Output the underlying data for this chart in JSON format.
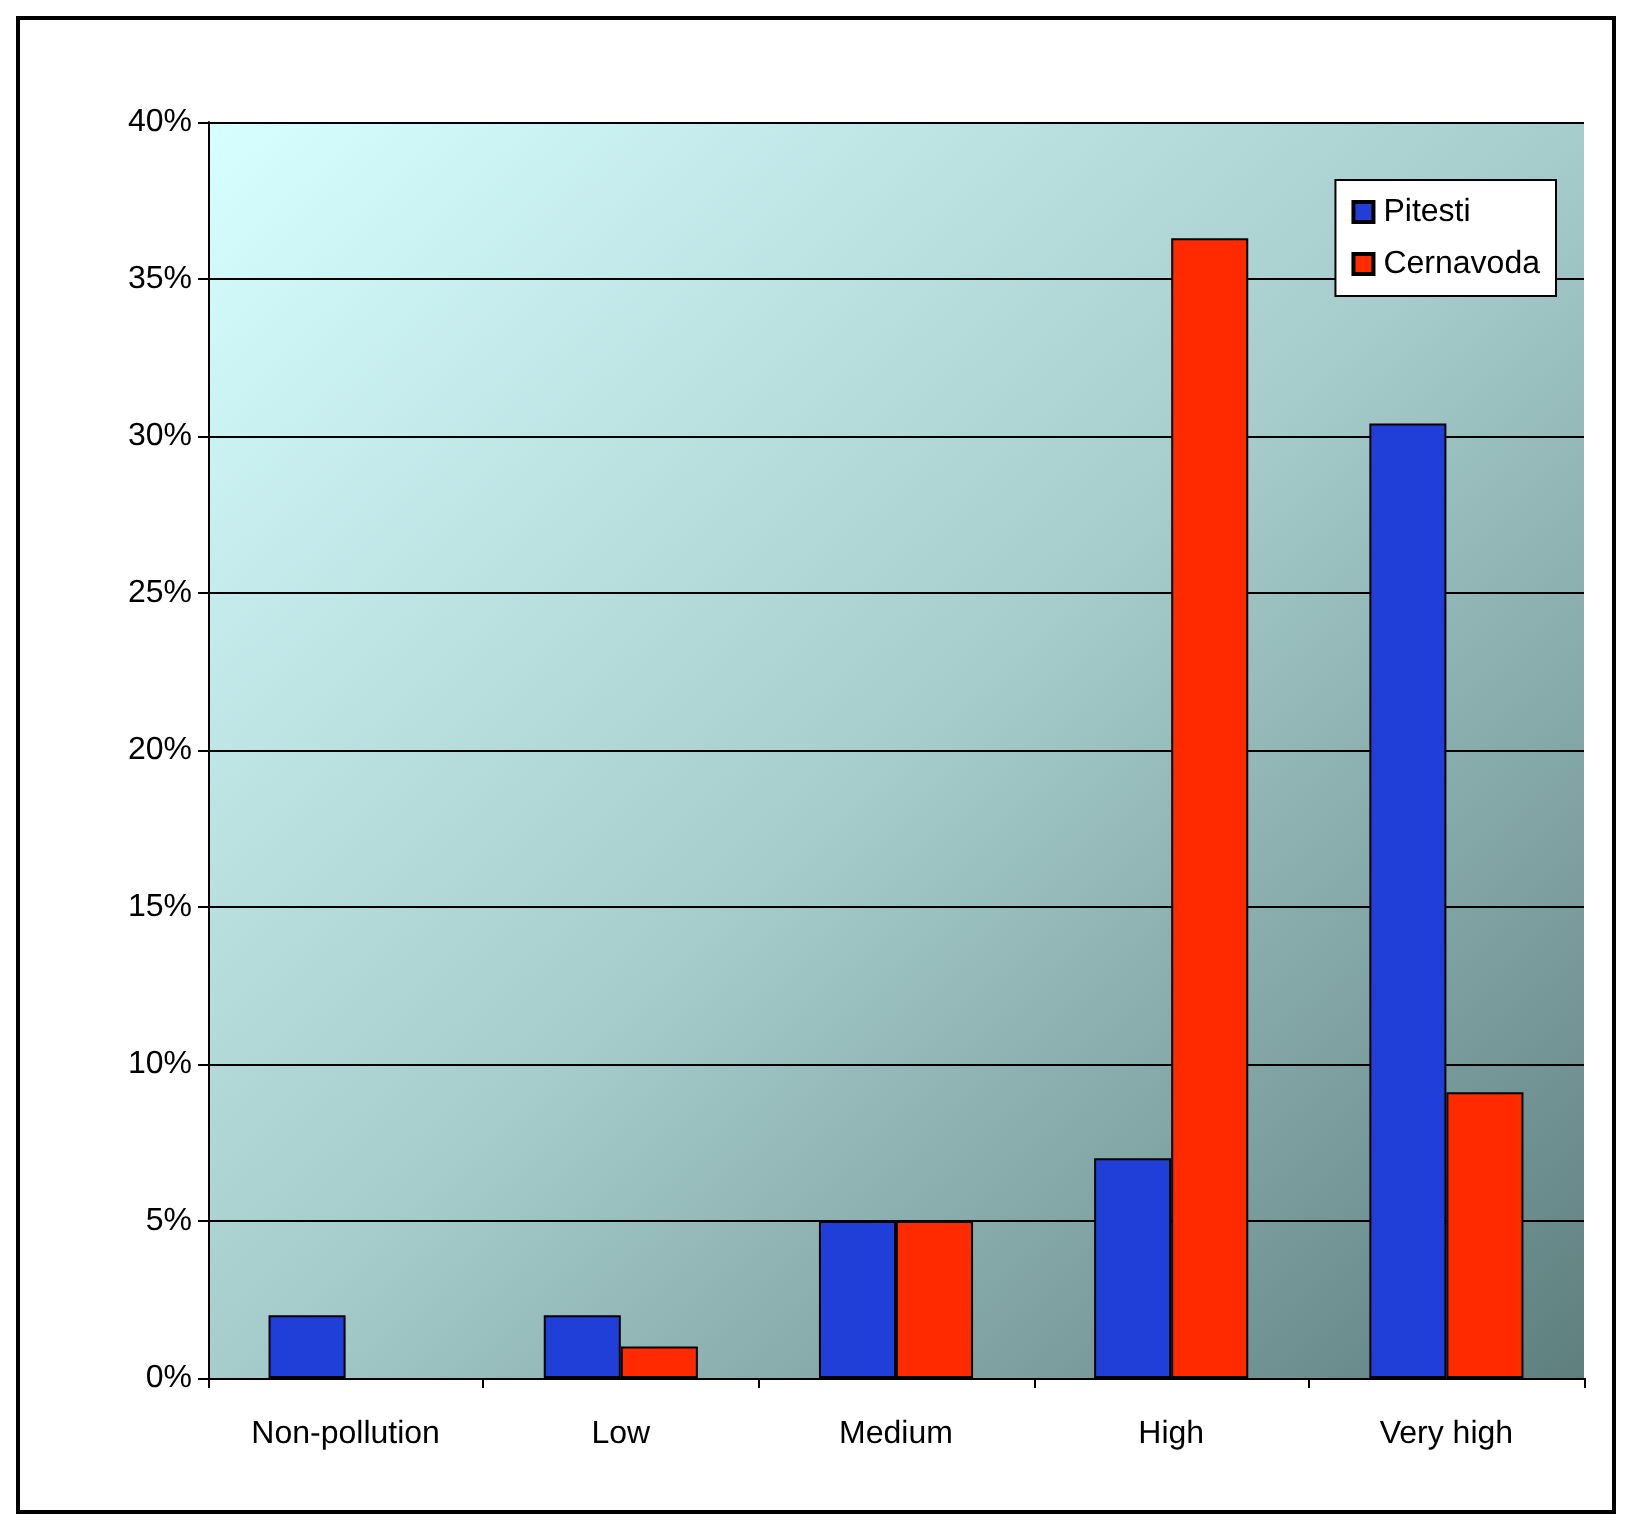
{
  "chart_data": {
    "type": "bar",
    "categories": [
      "Non-pollution",
      "Low",
      "Medium",
      "High",
      "Very high"
    ],
    "series": [
      {
        "name": "Pitesti",
        "color": "#1f3fd8",
        "values": [
          2,
          2,
          5,
          7,
          30.4
        ]
      },
      {
        "name": "Cernavoda",
        "color": "#ff2a00",
        "values": [
          null,
          1,
          5,
          36.3,
          9.1
        ]
      }
    ],
    "ylim": [
      0,
      40
    ],
    "yticks": [
      {
        "value": 0,
        "label": "0%"
      },
      {
        "value": 5,
        "label": "5%"
      },
      {
        "value": 10,
        "label": "10%"
      },
      {
        "value": 15,
        "label": "15%"
      },
      {
        "value": 20,
        "label": "20%"
      },
      {
        "value": 25,
        "label": "25%"
      },
      {
        "value": 30,
        "label": "30%"
      },
      {
        "value": 35,
        "label": "35%"
      },
      {
        "value": 40,
        "label": "40%"
      }
    ],
    "grid": "y",
    "legend": "top right"
  }
}
